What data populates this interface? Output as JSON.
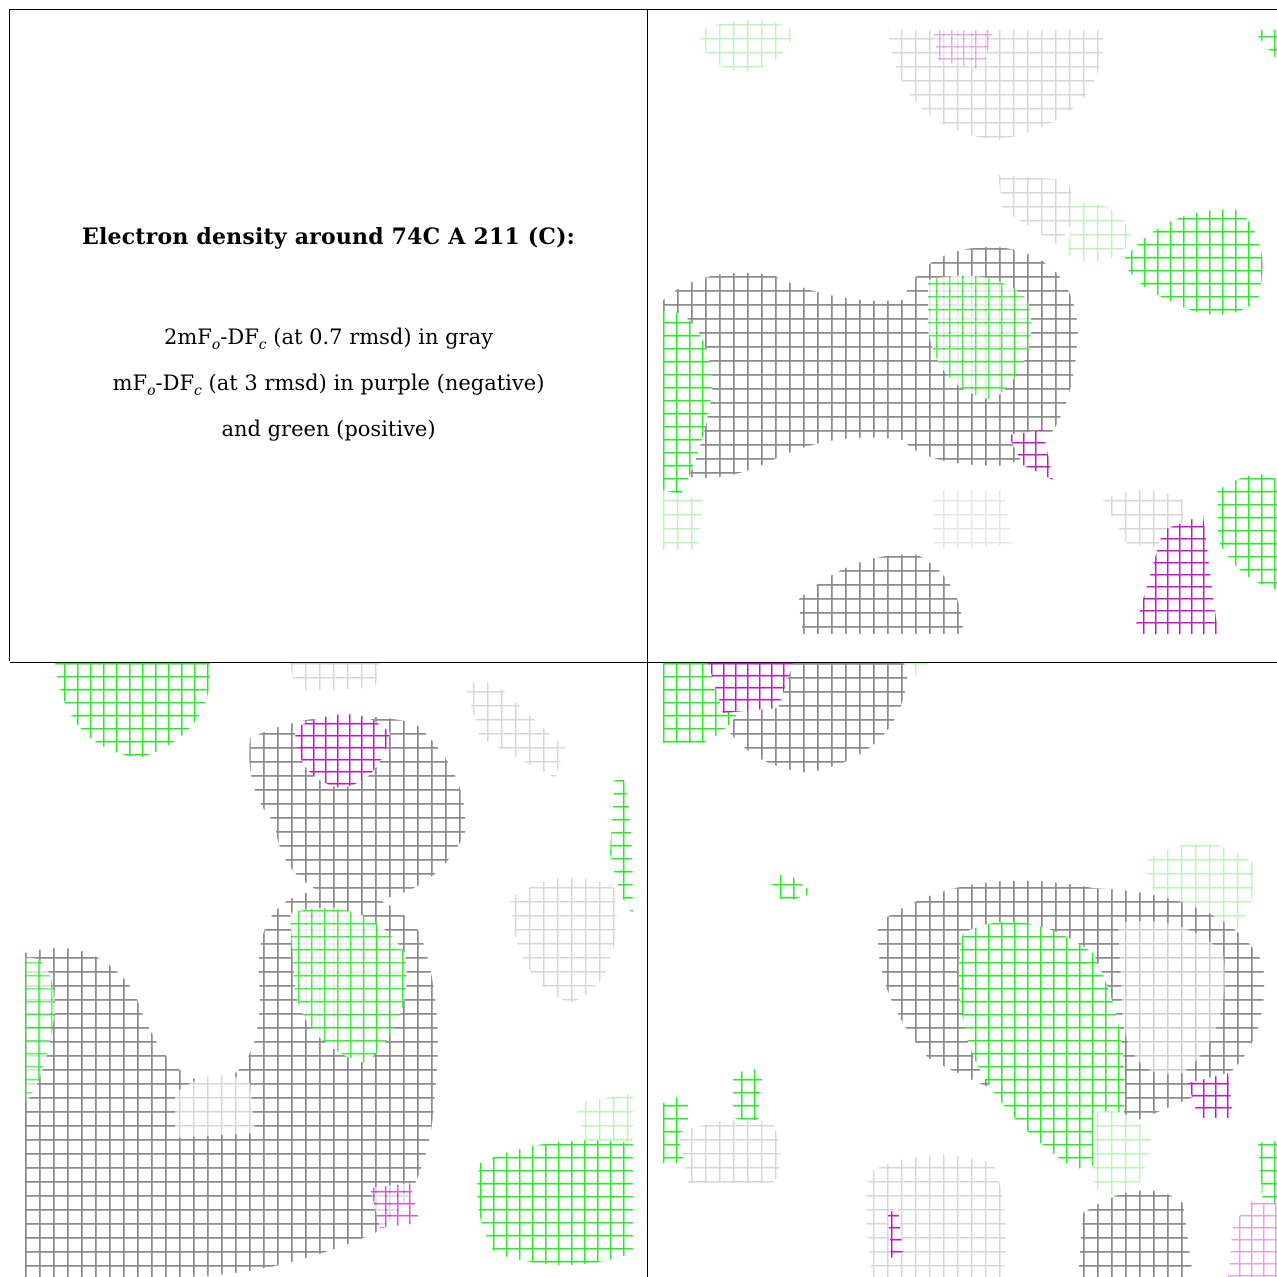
{
  "legend": {
    "title": "Electron density around 74C A 211 (C):",
    "line1_pre": "2mF",
    "line1_sub1": "o",
    "line1_mid": "-DF",
    "line1_sub2": "c",
    "line1_post": " (at 0.7 rmsd) in gray",
    "line2_pre": "mF",
    "line2_sub1": "o",
    "line2_mid": "-DF",
    "line2_sub2": "c",
    "line2_post": " (at 3 rmsd) in purple (negative)",
    "line3": "and green (positive)"
  },
  "colors": {
    "gray_mesh": "#8e8e8e",
    "light_gray_mesh": "#d9d9d9",
    "green_mesh": "#22ee22",
    "light_green_mesh": "#b5f5b5",
    "purple_mesh": "#cc11cc",
    "light_purple_mesh": "#eeaaee"
  },
  "views": [
    "view-top-right",
    "view-bottom-left",
    "view-bottom-right"
  ]
}
